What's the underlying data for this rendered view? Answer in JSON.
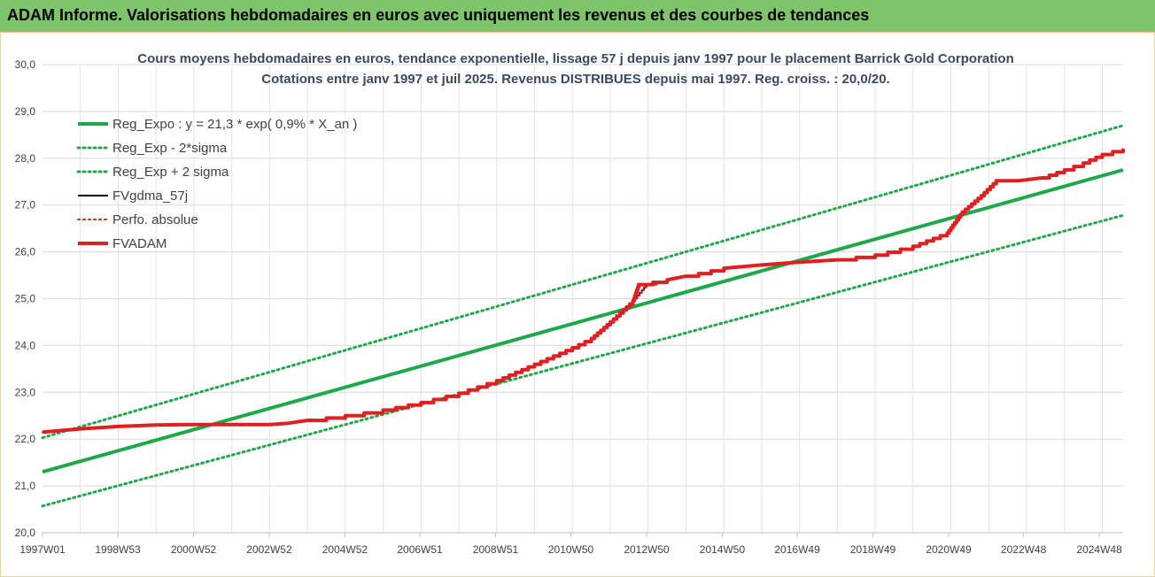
{
  "banner": {
    "title": "ADAM Informe. Valorisations hebdomadaires en euros avec uniquement les revenus et des courbes de tendances"
  },
  "chart_data": {
    "type": "line",
    "title": "Cours moyens hebdomadaires en euros, tendance exponentielle, lissage 57 j depuis janv 1997  pour le placement Barrick Gold Corporation",
    "subtitle": "Cotations entre janv 1997 et juil 2025. Revenus DISTRIBUES depuis mai 1997. Reg. croiss. : 20,0/20.",
    "xlabel": "",
    "ylabel": "",
    "xlim": [
      1997.0,
      2025.55
    ],
    "ylim": [
      20,
      30
    ],
    "yticks": [
      "20,0",
      "21,0",
      "22,0",
      "23,0",
      "24,0",
      "25,0",
      "26,0",
      "27,0",
      "28,0",
      "29,0",
      "30,0"
    ],
    "xticks": [
      {
        "x": 1997.0,
        "label": "1997W01"
      },
      {
        "x": 1998.99,
        "label": "1998W53"
      },
      {
        "x": 2000.99,
        "label": "2000W52"
      },
      {
        "x": 2002.99,
        "label": "2002W52"
      },
      {
        "x": 2004.99,
        "label": "2004W52"
      },
      {
        "x": 2006.97,
        "label": "2006W51"
      },
      {
        "x": 2008.97,
        "label": "2008W51"
      },
      {
        "x": 2010.96,
        "label": "2010W50"
      },
      {
        "x": 2012.96,
        "label": "2012W50"
      },
      {
        "x": 2014.96,
        "label": "2014W50"
      },
      {
        "x": 2016.94,
        "label": "2016W49"
      },
      {
        "x": 2018.94,
        "label": "2018W49"
      },
      {
        "x": 2020.94,
        "label": "2020W49"
      },
      {
        "x": 2022.92,
        "label": "2022W48"
      },
      {
        "x": 2024.92,
        "label": "2024W48"
      }
    ],
    "grid": true,
    "legend_position": "top-left",
    "series": [
      {
        "name": "Reg_Expo : y = 21,3 * exp( 0,9% *  X_an )",
        "color": "#1fa84a",
        "style": "solid",
        "width": 4,
        "x": [
          1997.0,
          2025.55
        ],
        "y": [
          21.3,
          27.75
        ]
      },
      {
        "name": "Reg_Exp - 2*sigma",
        "color": "#1fa84a",
        "style": "dotted",
        "width": 3,
        "x": [
          1997.0,
          2025.55
        ],
        "y": [
          20.57,
          26.78
        ]
      },
      {
        "name": "Reg_Exp + 2 sigma",
        "color": "#1fa84a",
        "style": "dotted",
        "width": 3,
        "x": [
          1997.0,
          2025.55
        ],
        "y": [
          22.03,
          28.7
        ]
      },
      {
        "name": "FVgdma_57j",
        "color": "#000000",
        "style": "solid",
        "width": 2,
        "x": [
          1997.0,
          1998.0,
          1999.0,
          2000.0,
          2001.0,
          2002.0,
          2003.0,
          2003.5,
          2004.0,
          2005.0,
          2006.0,
          2007.0,
          2008.0,
          2009.0,
          2010.0,
          2011.0,
          2011.5,
          2012.0,
          2012.6,
          2012.95,
          2013.5,
          2014.0,
          2015.0,
          2016.0,
          2017.0,
          2018.0,
          2019.0,
          2020.0,
          2020.9,
          2021.3,
          2021.8,
          2022.2,
          2022.8,
          2023.4,
          2024.0,
          2024.5,
          2025.0,
          2025.55
        ],
        "y": [
          22.15,
          22.22,
          22.27,
          22.3,
          22.31,
          22.31,
          22.31,
          22.34,
          22.4,
          22.5,
          22.62,
          22.78,
          22.98,
          23.25,
          23.6,
          23.95,
          24.15,
          24.5,
          24.95,
          25.3,
          25.4,
          25.48,
          25.65,
          25.72,
          25.78,
          25.83,
          25.93,
          26.12,
          26.4,
          26.85,
          27.2,
          27.52,
          27.52,
          27.58,
          27.75,
          27.9,
          28.08,
          28.2
        ]
      },
      {
        "name": "Perfo. absolue",
        "color": "#e02020",
        "style": "dotted",
        "width": 2,
        "x": [
          1997.0,
          1998.0,
          1999.0,
          2000.0,
          2001.0,
          2002.0,
          2003.0,
          2003.5,
          2004.0,
          2005.0,
          2006.0,
          2007.0,
          2008.0,
          2009.0,
          2010.0,
          2011.0,
          2011.5,
          2012.0,
          2012.6,
          2012.95,
          2013.5,
          2014.0,
          2015.0,
          2016.0,
          2017.0,
          2018.0,
          2019.0,
          2020.0,
          2020.9,
          2021.3,
          2021.8,
          2022.2,
          2022.8,
          2023.4,
          2024.0,
          2024.5,
          2025.0,
          2025.55
        ],
        "y": [
          22.15,
          22.22,
          22.27,
          22.3,
          22.31,
          22.31,
          22.31,
          22.34,
          22.4,
          22.5,
          22.62,
          22.78,
          22.98,
          23.25,
          23.6,
          23.95,
          24.15,
          24.5,
          24.95,
          25.3,
          25.4,
          25.48,
          25.65,
          25.72,
          25.78,
          25.83,
          25.93,
          26.12,
          26.4,
          26.85,
          27.2,
          27.52,
          27.52,
          27.58,
          27.75,
          27.9,
          28.08,
          28.2
        ]
      },
      {
        "name": "FVADAM",
        "color": "#e02020",
        "style": "solid",
        "width": 4,
        "x": [
          1997.0,
          1998.0,
          1999.0,
          2000.0,
          2001.0,
          2002.0,
          2003.0,
          2003.5,
          2004.0,
          2005.0,
          2006.0,
          2007.0,
          2008.0,
          2009.0,
          2010.0,
          2011.0,
          2011.5,
          2012.0,
          2012.6,
          2012.75,
          2013.5,
          2014.0,
          2015.0,
          2016.0,
          2017.0,
          2018.0,
          2019.0,
          2020.0,
          2020.9,
          2021.3,
          2021.8,
          2022.2,
          2022.8,
          2023.4,
          2024.0,
          2024.5,
          2025.0,
          2025.55
        ],
        "y": [
          22.15,
          22.22,
          22.27,
          22.3,
          22.31,
          22.31,
          22.31,
          22.34,
          22.4,
          22.5,
          22.62,
          22.78,
          22.98,
          23.25,
          23.6,
          23.95,
          24.15,
          24.5,
          24.95,
          25.3,
          25.4,
          25.48,
          25.65,
          25.72,
          25.78,
          25.83,
          25.93,
          26.12,
          26.4,
          26.85,
          27.2,
          27.52,
          27.52,
          27.58,
          27.75,
          27.9,
          28.08,
          28.2
        ]
      }
    ]
  }
}
